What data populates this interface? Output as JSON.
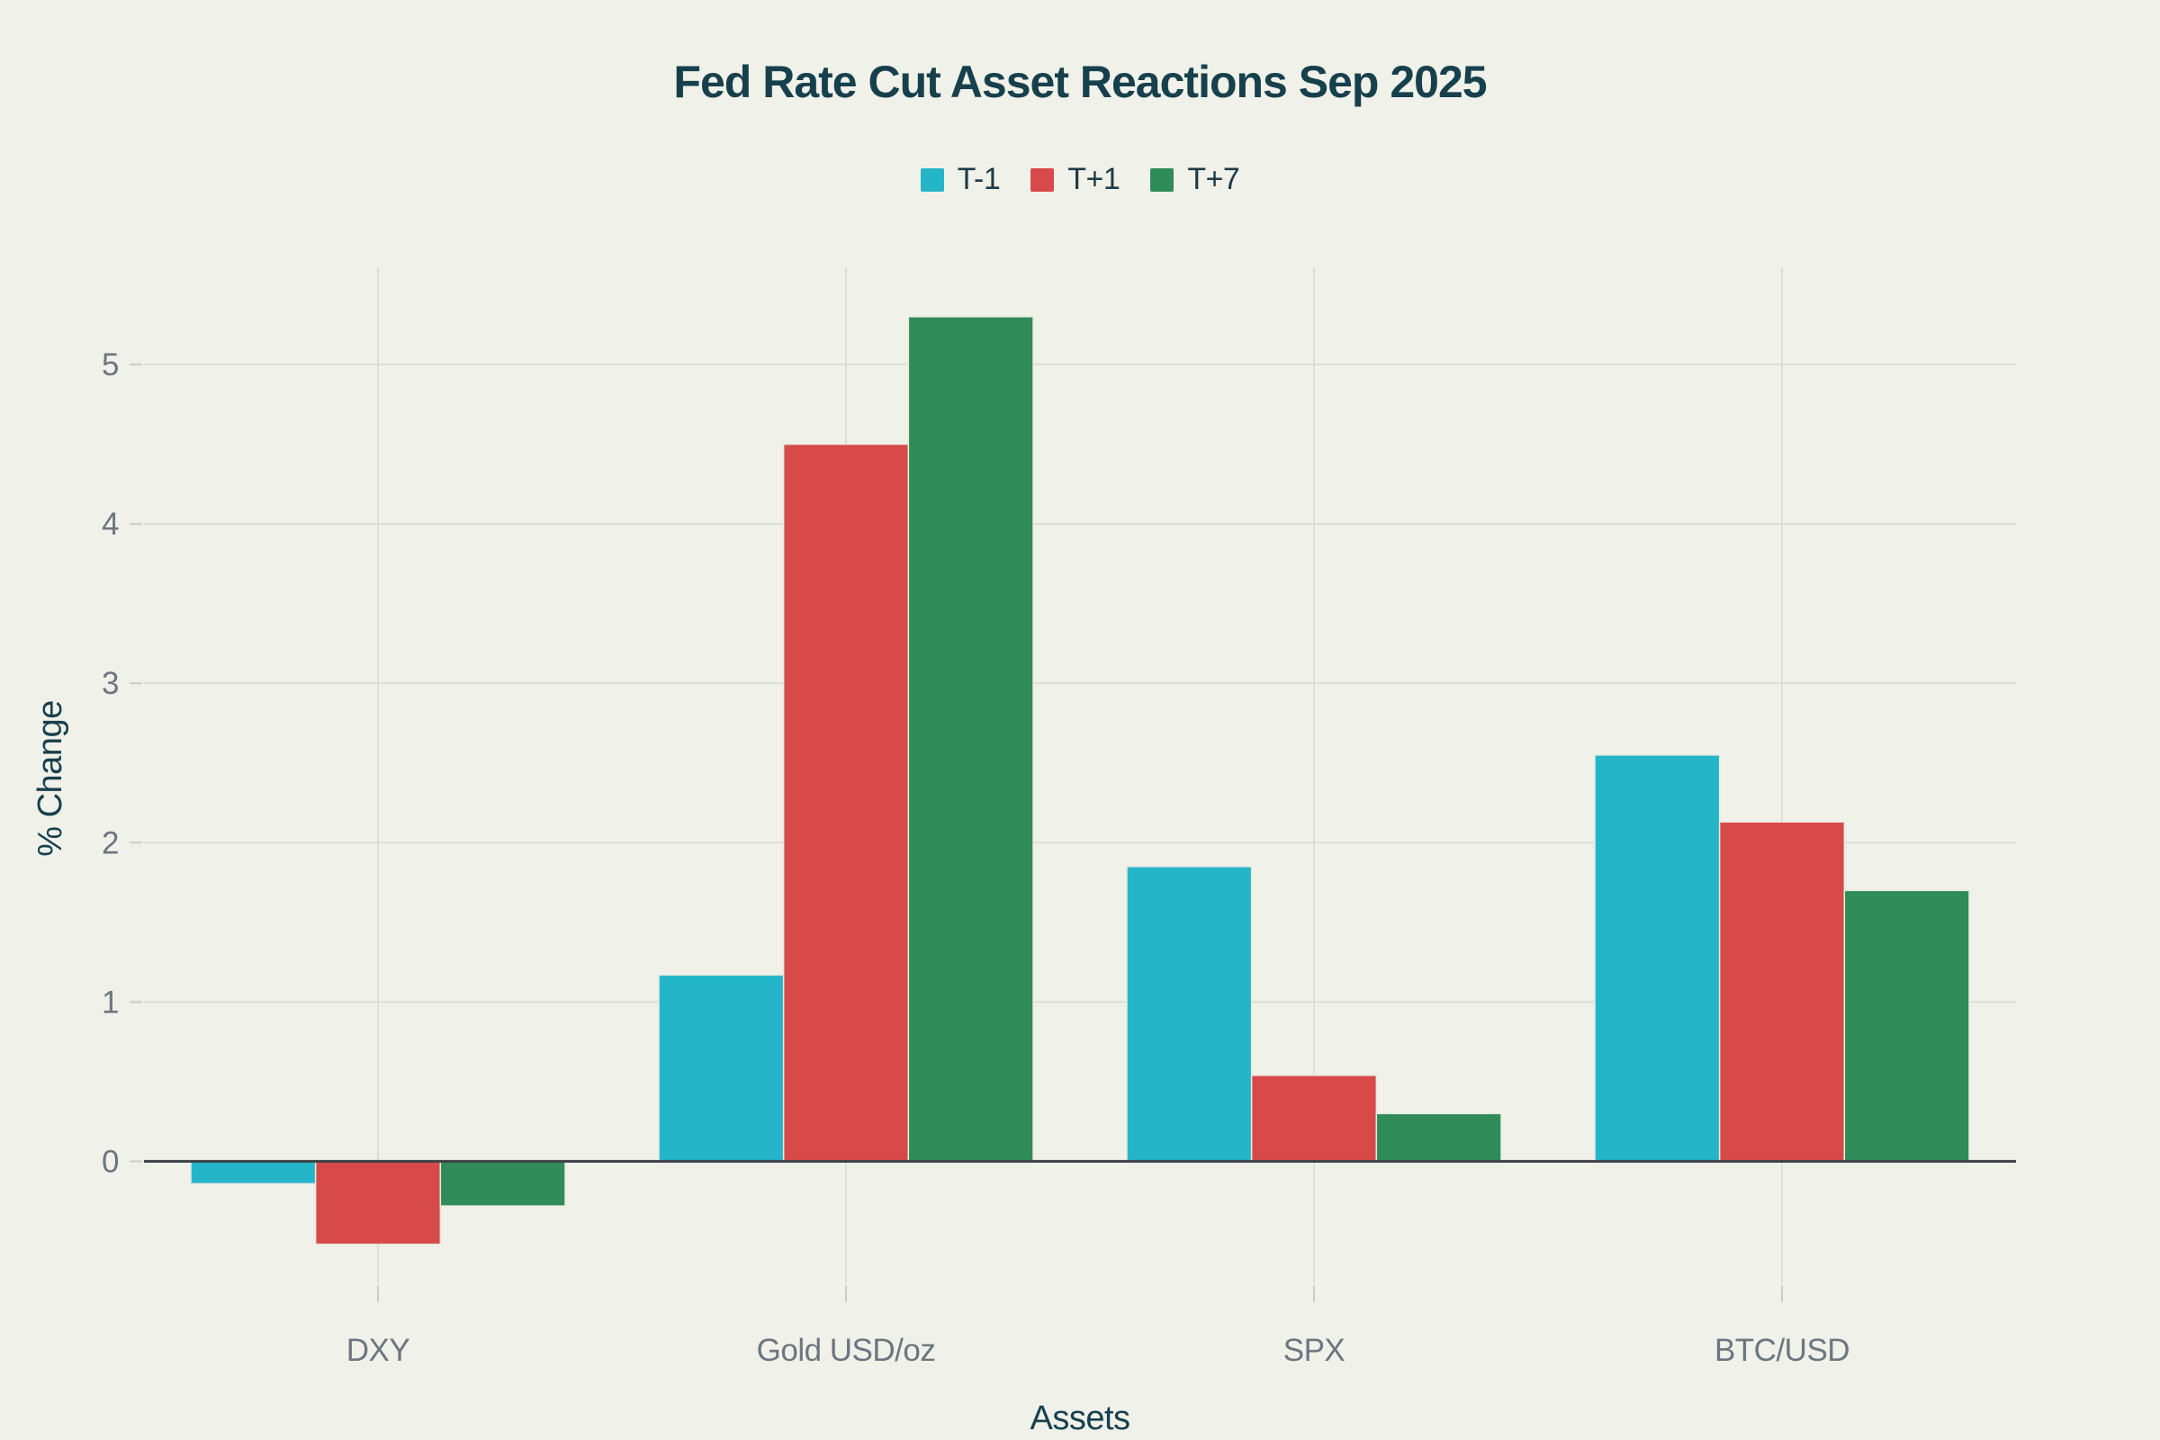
{
  "chart_data": {
    "type": "bar",
    "title": "Fed Rate Cut Asset Reactions Sep 2025",
    "xlabel": "Assets",
    "ylabel": "% Change",
    "categories": [
      "DXY",
      "Gold USD/oz",
      "SPX",
      "BTC/USD"
    ],
    "series": [
      {
        "name": "T-1",
        "color": "#25b5c9",
        "values": [
          -0.14,
          1.17,
          1.85,
          2.55
        ]
      },
      {
        "name": "T+1",
        "color": "#d8494a",
        "values": [
          -0.52,
          4.5,
          0.54,
          2.13
        ]
      },
      {
        "name": "T+7",
        "color": "#2f8b57",
        "values": [
          -0.28,
          5.3,
          0.3,
          1.7
        ]
      }
    ],
    "yticks": [
      0,
      1,
      2,
      3,
      4,
      5
    ],
    "ylim": [
      -0.76,
      5.61
    ],
    "grid": true,
    "legend_position": "top-center"
  },
  "colors": {
    "background": "#f0f1e9",
    "title_text": "#17404d",
    "legend_text": "#1d3a46",
    "tick_text": "#6b7680",
    "gridline": "#dcddd4",
    "tick_mark": "#cdcec6",
    "axis_line": "#3d4247",
    "bar_outline": "#e9eae0"
  }
}
